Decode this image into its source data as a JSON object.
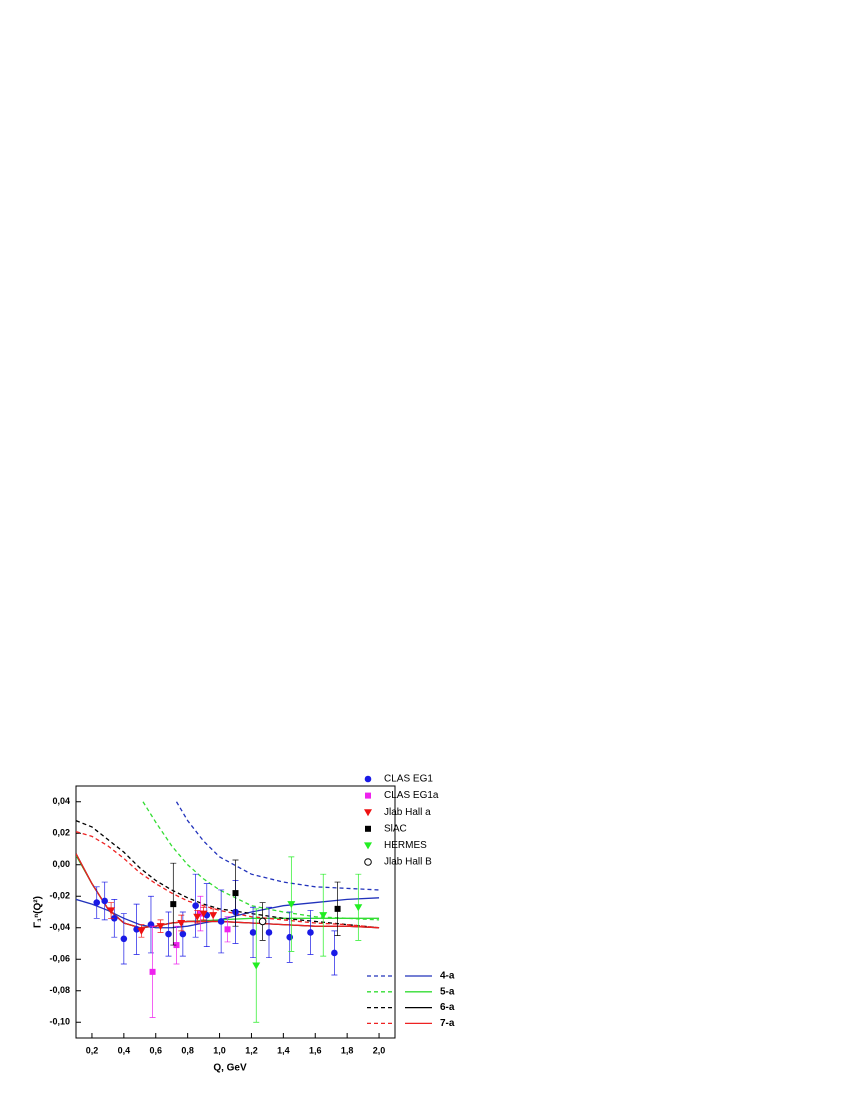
{
  "chart_data": {
    "type": "scatter",
    "x_label": "Q,   GeV",
    "y_label": "Γ₁ⁿ(Q²)",
    "xlim": [
      0.1,
      2.1
    ],
    "ylim": [
      -0.11,
      0.05
    ],
    "xticks": [
      {
        "value": 0.2,
        "label": "0,2"
      },
      {
        "value": 0.4,
        "label": "0,4"
      },
      {
        "value": 0.6,
        "label": "0,6"
      },
      {
        "value": 0.8,
        "label": "0,8"
      },
      {
        "value": 1.0,
        "label": "1,0"
      },
      {
        "value": 1.2,
        "label": "1,2"
      },
      {
        "value": 1.4,
        "label": "1,4"
      },
      {
        "value": 1.6,
        "label": "1,6"
      },
      {
        "value": 1.8,
        "label": "1,8"
      },
      {
        "value": 2.0,
        "label": "2,0"
      }
    ],
    "yticks": [
      {
        "value": 0.04,
        "label": "0,04"
      },
      {
        "value": 0.02,
        "label": "0,02"
      },
      {
        "value": 0,
        "label": "0,00"
      },
      {
        "value": -0.02,
        "label": "-0,02"
      },
      {
        "value": -0.04,
        "label": "-0,04"
      },
      {
        "value": -0.06,
        "label": "-0,06"
      },
      {
        "value": -0.08,
        "label": "-0,08"
      },
      {
        "value": -0.1,
        "label": "-0,10"
      }
    ],
    "legend": "upper right",
    "series": [
      {
        "name": "CLAS EG1",
        "color": "#1a1ae6",
        "marker": "circle",
        "x": [
          0.23,
          0.28,
          0.34,
          0.4,
          0.48,
          0.57,
          0.68,
          0.77,
          0.85,
          0.92,
          1.01,
          1.1,
          1.21,
          1.31,
          1.44,
          1.57,
          1.72
        ],
        "values": [
          -0.024,
          -0.023,
          -0.034,
          -0.047,
          -0.041,
          -0.038,
          -0.044,
          -0.044,
          -0.026,
          -0.032,
          -0.036,
          -0.03,
          -0.043,
          -0.043,
          -0.046,
          -0.043,
          -0.056
        ],
        "errors": [
          0.01,
          0.012,
          0.012,
          0.016,
          0.016,
          0.018,
          0.014,
          0.014,
          0.02,
          0.02,
          0.02,
          0.02,
          0.016,
          0.016,
          0.016,
          0.014,
          0.014
        ]
      },
      {
        "name": "CLAS EG1a",
        "color": "#ee22ee",
        "marker": "square",
        "x": [
          0.58,
          0.73,
          0.88,
          1.05
        ],
        "values": [
          -0.068,
          -0.051,
          -0.031,
          -0.041
        ],
        "errors": [
          0.029,
          0.012,
          0.011,
          0.008
        ]
      },
      {
        "name": "Jlab Hall a",
        "color": "#ee1111",
        "marker": "triangle-down",
        "x": [
          0.32,
          0.51,
          0.63,
          0.76,
          0.86,
          0.9,
          0.96
        ],
        "values": [
          -0.029,
          -0.042,
          -0.039,
          -0.037,
          -0.033,
          -0.031,
          -0.032
        ],
        "errors": [
          0.005,
          0.004,
          0.004,
          0.005,
          0.004,
          0.004,
          0.004
        ]
      },
      {
        "name": "SlAC",
        "color": "#000000",
        "marker": "square",
        "x": [
          0.71,
          1.1,
          1.74
        ],
        "values": [
          -0.025,
          -0.018,
          -0.028
        ],
        "errors": [
          0.026,
          0.021,
          0.017
        ]
      },
      {
        "name": "HERMES",
        "color": "#22ee22",
        "marker": "triangle-down",
        "x": [
          1.23,
          1.45,
          1.65,
          1.87
        ],
        "values": [
          -0.064,
          -0.025,
          -0.032,
          -0.027
        ],
        "errors": [
          0.036,
          0.03,
          0.026,
          0.021
        ]
      },
      {
        "name": "Jlab Hall B",
        "color": "#000000",
        "marker": "open-circle",
        "x": [
          1.27
        ],
        "values": [
          -0.036
        ],
        "errors": [
          0.012
        ]
      }
    ],
    "curves": [
      {
        "name": "4-a",
        "color": "#2233bb",
        "dashed": {
          "x": [
            0.73,
            0.8,
            0.9,
            1.0,
            1.2,
            1.4,
            1.6,
            1.8,
            2.0
          ],
          "values": [
            0.04,
            0.028,
            0.015,
            0.005,
            -0.006,
            -0.011,
            -0.014,
            -0.015,
            -0.016
          ]
        },
        "solid": {
          "x": [
            0.1,
            0.2,
            0.3,
            0.4,
            0.5,
            0.6,
            0.7,
            0.8,
            0.9,
            1.0,
            1.2,
            1.4,
            1.6,
            1.8,
            2.0
          ],
          "values": [
            -0.022,
            -0.025,
            -0.029,
            -0.034,
            -0.038,
            -0.04,
            -0.04,
            -0.039,
            -0.037,
            -0.035,
            -0.03,
            -0.026,
            -0.024,
            -0.022,
            -0.021
          ]
        }
      },
      {
        "name": "5-a",
        "color": "#33dd33",
        "dashed": {
          "x": [
            0.52,
            0.6,
            0.7,
            0.8,
            0.9,
            1.0,
            1.2,
            1.4,
            1.6,
            1.8,
            2.0
          ],
          "values": [
            0.04,
            0.027,
            0.012,
            0.0,
            -0.009,
            -0.016,
            -0.026,
            -0.03,
            -0.033,
            -0.034,
            -0.035
          ]
        },
        "solid": {
          "x": [
            0.1,
            0.2,
            0.3,
            0.4,
            0.5,
            0.6,
            0.7,
            0.8,
            1.0,
            1.2,
            1.4,
            1.6,
            1.8,
            2.0
          ],
          "values": [
            0.006,
            -0.012,
            -0.028,
            -0.037,
            -0.04,
            -0.039,
            -0.037,
            -0.036,
            -0.035,
            -0.034,
            -0.034,
            -0.034,
            -0.034,
            -0.034
          ]
        }
      },
      {
        "name": "6-a",
        "color": "#000000",
        "dashed": {
          "x": [
            0.1,
            0.2,
            0.3,
            0.4,
            0.5,
            0.6,
            0.7,
            0.8,
            0.9,
            1.0,
            1.2,
            1.4,
            1.6,
            1.8,
            2.0
          ],
          "values": [
            0.028,
            0.024,
            0.016,
            0.008,
            -0.002,
            -0.01,
            -0.016,
            -0.021,
            -0.025,
            -0.028,
            -0.031,
            -0.034,
            -0.036,
            -0.038,
            -0.04
          ]
        },
        "solid": {
          "x": [
            0.1,
            0.2,
            0.3,
            0.4,
            0.5,
            0.6,
            0.7,
            0.8,
            1.0,
            1.2,
            1.4,
            1.6,
            1.8,
            2.0
          ],
          "values": [
            0.007,
            -0.012,
            -0.028,
            -0.037,
            -0.04,
            -0.039,
            -0.037,
            -0.036,
            -0.036,
            -0.037,
            -0.038,
            -0.039,
            -0.039,
            -0.04
          ]
        }
      },
      {
        "name": "7-a",
        "color": "#ee2222",
        "dashed": {
          "x": [
            0.1,
            0.2,
            0.3,
            0.4,
            0.5,
            0.6,
            0.7,
            0.8,
            0.9,
            1.0,
            1.2,
            1.4,
            1.6,
            1.8,
            2.0
          ],
          "values": [
            0.021,
            0.018,
            0.012,
            0.004,
            -0.005,
            -0.012,
            -0.018,
            -0.023,
            -0.026,
            -0.029,
            -0.033,
            -0.035,
            -0.037,
            -0.038,
            -0.04
          ]
        },
        "solid": {
          "x": [
            0.1,
            0.2,
            0.3,
            0.4,
            0.5,
            0.6,
            0.7,
            0.8,
            1.0,
            1.2,
            1.4,
            1.6,
            1.8,
            2.0
          ],
          "values": [
            0.007,
            -0.012,
            -0.028,
            -0.037,
            -0.04,
            -0.039,
            -0.037,
            -0.036,
            -0.036,
            -0.037,
            -0.038,
            -0.039,
            -0.039,
            -0.04
          ]
        }
      }
    ]
  }
}
